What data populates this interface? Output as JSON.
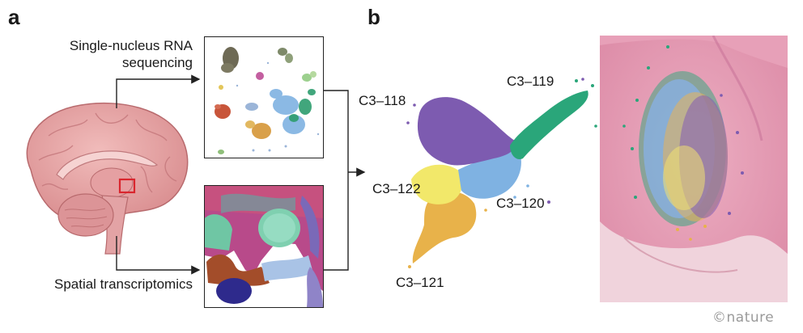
{
  "panels": {
    "a": {
      "letter": "a",
      "snrna_label": "Single-nucleus RNA sequencing",
      "spatial_label": "Spatial transcriptomics"
    },
    "b": {
      "letter": "b",
      "clusters": [
        {
          "id": "C3–118",
          "color": "#7d5bb0"
        },
        {
          "id": "C3–119",
          "color": "#2aa67a"
        },
        {
          "id": "C3–120",
          "color": "#7fb2e2"
        },
        {
          "id": "C3–121",
          "color": "#e8b24a"
        },
        {
          "id": "C3–122",
          "color": "#f2e86a"
        }
      ]
    }
  },
  "credit": "©nature",
  "colors": {
    "brain": "#e9a7a6",
    "brain_dark": "#c96f72",
    "he_stain": "#e7a4b8",
    "highlight_box": "#d9262e"
  },
  "icons": [
    "brain-illustration",
    "umap-plot",
    "spatial-map",
    "tissue-section"
  ]
}
